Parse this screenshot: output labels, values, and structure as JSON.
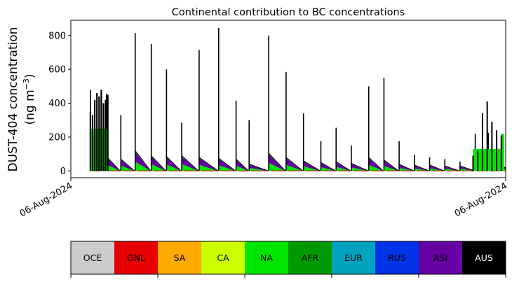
{
  "chart_data": {
    "type": "area",
    "title": "Continental contribution to BC concentrations",
    "ylabel_line1": "DUST-404 concentration",
    "ylabel_line2_prefix": "(ng m",
    "ylabel_line2_sup": "−3",
    "ylabel_line2_suffix": ")",
    "x_tick_labels": [
      "06-Aug-2024",
      "06-Aug-2024"
    ],
    "ylim": [
      -40,
      890
    ],
    "yticks": [
      0,
      200,
      400,
      600,
      800
    ],
    "grid": false,
    "legend_placement": "bottom",
    "regions": [
      {
        "name": "OCE",
        "color": "#cccccc",
        "text_color": "#000000"
      },
      {
        "name": "GNL",
        "color": "#e60000",
        "text_color": "#000000"
      },
      {
        "name": "SA",
        "color": "#ffaa00",
        "text_color": "#000000"
      },
      {
        "name": "CA",
        "color": "#ccff00",
        "text_color": "#000000"
      },
      {
        "name": "NA",
        "color": "#00e600",
        "text_color": "#000000"
      },
      {
        "name": "AFR",
        "color": "#009900",
        "text_color": "#000000"
      },
      {
        "name": "EUR",
        "color": "#00a3bf",
        "text_color": "#000000"
      },
      {
        "name": "RUS",
        "color": "#0033e6",
        "text_color": "#000000"
      },
      {
        "name": "ASI",
        "color": "#6600a3",
        "text_color": "#000000"
      },
      {
        "name": "AUS",
        "color": "#000000",
        "text_color": "#ffffff"
      }
    ],
    "pulses": [
      {
        "x": 0.045,
        "baseline": 95,
        "spike": 480
      },
      {
        "x": 0.07,
        "baseline": 90,
        "spike": 410
      },
      {
        "x": 0.082,
        "baseline": 85,
        "spike": 455
      },
      {
        "x": 0.115,
        "baseline": 70,
        "spike": 330
      },
      {
        "x": 0.148,
        "baseline": 120,
        "spike": 815
      },
      {
        "x": 0.185,
        "baseline": 90,
        "spike": 750
      },
      {
        "x": 0.22,
        "baseline": 85,
        "spike": 600
      },
      {
        "x": 0.255,
        "baseline": 90,
        "spike": 285
      },
      {
        "x": 0.295,
        "baseline": 80,
        "spike": 715
      },
      {
        "x": 0.34,
        "baseline": 75,
        "spike": 845
      },
      {
        "x": 0.38,
        "baseline": 70,
        "spike": 415
      },
      {
        "x": 0.41,
        "baseline": 40,
        "spike": 300
      },
      {
        "x": 0.455,
        "baseline": 105,
        "spike": 800
      },
      {
        "x": 0.495,
        "baseline": 80,
        "spike": 585
      },
      {
        "x": 0.535,
        "baseline": 60,
        "spike": 340
      },
      {
        "x": 0.575,
        "baseline": 50,
        "spike": 175
      },
      {
        "x": 0.61,
        "baseline": 55,
        "spike": 255
      },
      {
        "x": 0.645,
        "baseline": 45,
        "spike": 150
      },
      {
        "x": 0.685,
        "baseline": 80,
        "spike": 500
      },
      {
        "x": 0.72,
        "baseline": 65,
        "spike": 550
      },
      {
        "x": 0.755,
        "baseline": 40,
        "spike": 175
      },
      {
        "x": 0.79,
        "baseline": 35,
        "spike": 95
      },
      {
        "x": 0.825,
        "baseline": 35,
        "spike": 80
      },
      {
        "x": 0.86,
        "baseline": 30,
        "spike": 70
      },
      {
        "x": 0.895,
        "baseline": 30,
        "spike": 55
      },
      {
        "x": 0.93,
        "baseline": 40,
        "spike": 220
      },
      {
        "x": 0.96,
        "baseline": 45,
        "spike": 225
      },
      {
        "x": 0.99,
        "baseline": 30,
        "spike": 85
      }
    ],
    "start_block": {
      "x0": 0.045,
      "x1": 0.085,
      "level": 250,
      "spikes": [
        350,
        330,
        420,
        460,
        440,
        480,
        400,
        420,
        450
      ]
    },
    "end_block": {
      "x0": 0.925,
      "x1": 0.99,
      "level": 130,
      "spikes": [
        90,
        120,
        340,
        410,
        290,
        240,
        210
      ]
    }
  }
}
